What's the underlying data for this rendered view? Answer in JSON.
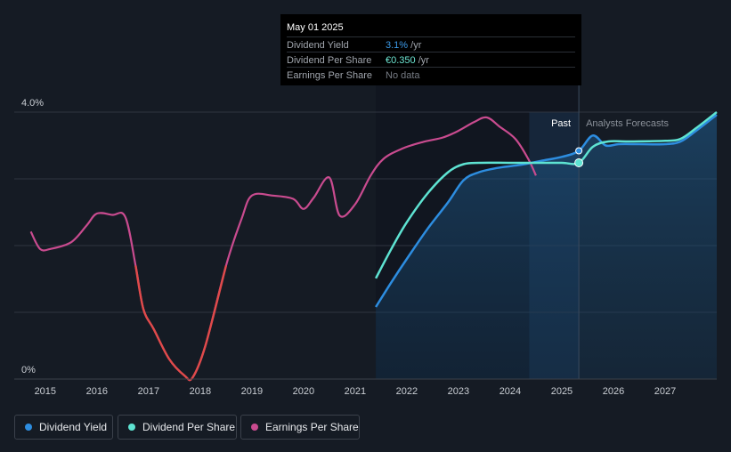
{
  "tooltip": {
    "date": "May 01 2025",
    "rows": [
      {
        "label": "Dividend Yield",
        "value": "3.1%",
        "unit": " /yr",
        "color": "#3c9ae8"
      },
      {
        "label": "Dividend Per Share",
        "value": "€0.350",
        "unit": " /yr",
        "color": "#6ee7d4"
      },
      {
        "label": "Earnings Per Share",
        "value": "No data",
        "unit": "",
        "color": "#777c85"
      }
    ]
  },
  "regions": {
    "past_label": "Past",
    "forecast_label": "Analysts Forecasts"
  },
  "legend": [
    {
      "label": "Dividend Yield",
      "color": "#2d8de0"
    },
    {
      "label": "Dividend Per Share",
      "color": "#5ee3d2"
    },
    {
      "label": "Earnings Per Share",
      "color": "#c94b8f"
    }
  ],
  "colors": {
    "background": "#151b24",
    "past_band": "#111620",
    "grid": "#2e3440",
    "dividend_yield": "#2d8de0",
    "dividend_per_share": "#5ee3d2",
    "earnings_per_share": "#c94b8f",
    "earnings_negative_trend": "#e04a4a",
    "text": "#c9cdd3"
  },
  "chart_data": {
    "type": "line",
    "x_axis": {
      "min": 2014.4,
      "max": 2028.0,
      "tick_labels": [
        "2015",
        "2016",
        "2017",
        "2018",
        "2019",
        "2020",
        "2021",
        "2022",
        "2023",
        "2024",
        "2025",
        "2026",
        "2027"
      ],
      "tick_values": [
        2015,
        2016,
        2017,
        2018,
        2019,
        2020,
        2021,
        2022,
        2023,
        2024,
        2025,
        2026,
        2027
      ]
    },
    "y_axis": {
      "min": 0,
      "max": 4.0,
      "unit": "%",
      "tick_labels": [
        "0%",
        "4.0%"
      ],
      "tick_values": [
        0,
        4.0
      ],
      "grid_values": [
        0,
        1.0,
        2.0,
        3.0,
        4.0
      ],
      "grid": true
    },
    "past_forecast_split": 2025.33,
    "highlight_band": [
      2024.37,
      2025.33
    ],
    "shaded_area_start": 2021.4,
    "marker_x": 2025.33,
    "legend_position": "bottom-left",
    "series": [
      {
        "name": "Dividend Yield",
        "shaded": true,
        "points": [
          [
            2021.4,
            1.08
          ],
          [
            2021.7,
            1.45
          ],
          [
            2022.0,
            1.8
          ],
          [
            2022.4,
            2.25
          ],
          [
            2022.8,
            2.65
          ],
          [
            2023.1,
            2.98
          ],
          [
            2023.4,
            3.1
          ],
          [
            2023.8,
            3.17
          ],
          [
            2024.2,
            3.21
          ],
          [
            2024.6,
            3.27
          ],
          [
            2025.0,
            3.33
          ],
          [
            2025.33,
            3.42
          ],
          [
            2025.6,
            3.65
          ],
          [
            2025.85,
            3.5
          ],
          [
            2026.1,
            3.52
          ],
          [
            2026.5,
            3.52
          ],
          [
            2027.0,
            3.52
          ],
          [
            2027.3,
            3.56
          ],
          [
            2027.6,
            3.72
          ],
          [
            2028.0,
            3.96
          ]
        ]
      },
      {
        "name": "Dividend Per Share",
        "points": [
          [
            2021.4,
            1.51
          ],
          [
            2021.7,
            1.95
          ],
          [
            2022.0,
            2.35
          ],
          [
            2022.4,
            2.78
          ],
          [
            2022.8,
            3.1
          ],
          [
            2023.1,
            3.22
          ],
          [
            2023.4,
            3.24
          ],
          [
            2024.0,
            3.24
          ],
          [
            2024.6,
            3.24
          ],
          [
            2025.0,
            3.24
          ],
          [
            2025.33,
            3.24
          ],
          [
            2025.6,
            3.48
          ],
          [
            2025.9,
            3.56
          ],
          [
            2026.3,
            3.56
          ],
          [
            2027.0,
            3.57
          ],
          [
            2027.3,
            3.6
          ],
          [
            2027.6,
            3.76
          ],
          [
            2028.0,
            4.0
          ]
        ]
      },
      {
        "name": "Earnings Per Share",
        "points": [
          [
            2014.72,
            2.21
          ],
          [
            2014.9,
            1.95
          ],
          [
            2015.1,
            1.95
          ],
          [
            2015.5,
            2.05
          ],
          [
            2015.8,
            2.3
          ],
          [
            2016.0,
            2.48
          ],
          [
            2016.3,
            2.46
          ],
          [
            2016.55,
            2.43
          ],
          [
            2016.75,
            1.7
          ],
          [
            2016.9,
            1.05
          ],
          [
            2017.1,
            0.75
          ],
          [
            2017.4,
            0.3
          ],
          [
            2017.7,
            0.05
          ],
          [
            2017.85,
            0.02
          ],
          [
            2018.1,
            0.5
          ],
          [
            2018.5,
            1.7
          ],
          [
            2018.8,
            2.4
          ],
          [
            2019.0,
            2.75
          ],
          [
            2019.4,
            2.75
          ],
          [
            2019.8,
            2.7
          ],
          [
            2020.0,
            2.55
          ],
          [
            2020.2,
            2.72
          ],
          [
            2020.5,
            3.02
          ],
          [
            2020.7,
            2.45
          ],
          [
            2021.0,
            2.62
          ],
          [
            2021.3,
            3.05
          ],
          [
            2021.55,
            3.3
          ],
          [
            2021.9,
            3.45
          ],
          [
            2022.3,
            3.55
          ],
          [
            2022.7,
            3.62
          ],
          [
            2023.0,
            3.72
          ],
          [
            2023.3,
            3.85
          ],
          [
            2023.55,
            3.92
          ],
          [
            2023.8,
            3.78
          ],
          [
            2024.1,
            3.6
          ],
          [
            2024.35,
            3.3
          ],
          [
            2024.5,
            3.05
          ]
        ]
      }
    ]
  }
}
